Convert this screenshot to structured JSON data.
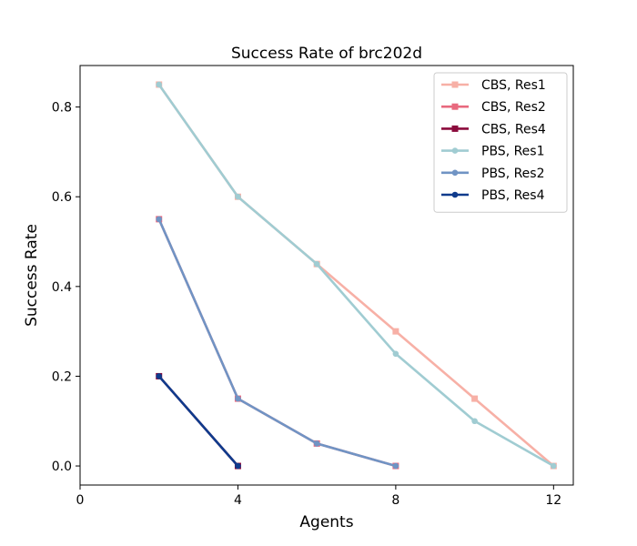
{
  "chart_data": {
    "type": "line",
    "title": "Success Rate of brc202d",
    "xlabel": "Agents",
    "ylabel": "Success Rate",
    "xlim": [
      0,
      12.5
    ],
    "ylim": [
      -0.0425,
      0.8925
    ],
    "xticks": [
      0,
      4,
      8,
      12
    ],
    "xtick_labels": [
      "0",
      "4",
      "8",
      "12"
    ],
    "yticks": [
      0.0,
      0.2,
      0.4,
      0.6,
      0.8
    ],
    "ytick_labels": [
      "0.0",
      "0.2",
      "0.4",
      "0.6",
      "0.8"
    ],
    "grid": false,
    "legend_position": "top-right",
    "series": [
      {
        "name": "CBS, Res1",
        "color": "#f7b0a6",
        "marker": "square",
        "x": [
          2,
          4,
          6,
          8,
          10,
          12
        ],
        "y": [
          0.85,
          0.6,
          0.45,
          0.3,
          0.15,
          0.0
        ]
      },
      {
        "name": "CBS, Res2",
        "color": "#e8697e",
        "marker": "square",
        "x": [
          2,
          4,
          6,
          8
        ],
        "y": [
          0.55,
          0.15,
          0.05,
          0.0
        ]
      },
      {
        "name": "CBS, Res4",
        "color": "#8b0a3c",
        "marker": "square",
        "x": [
          2,
          4
        ],
        "y": [
          0.2,
          0.0
        ]
      },
      {
        "name": "PBS, Res1",
        "color": "#a0ccd2",
        "marker": "circle",
        "x": [
          2,
          4,
          6,
          8,
          10,
          12
        ],
        "y": [
          0.85,
          0.6,
          0.45,
          0.25,
          0.1,
          0.0
        ]
      },
      {
        "name": "PBS, Res2",
        "color": "#7094c4",
        "marker": "circle",
        "x": [
          2,
          4,
          6,
          8
        ],
        "y": [
          0.55,
          0.15,
          0.05,
          0.0
        ]
      },
      {
        "name": "PBS, Res4",
        "color": "#0f3b8c",
        "marker": "circle",
        "x": [
          2,
          4
        ],
        "y": [
          0.2,
          0.0
        ]
      }
    ]
  }
}
